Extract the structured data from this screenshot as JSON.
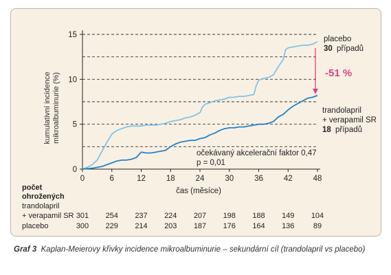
{
  "chart_data": {
    "type": "line",
    "xlabel": "čas (měsíce)",
    "ylabel": [
      "kumulativní incidence",
      "mikroalbuminurie (%)"
    ],
    "xlim": [
      0,
      48
    ],
    "ylim": [
      0,
      15
    ],
    "x_ticks": [
      0,
      6,
      12,
      18,
      24,
      30,
      36,
      42,
      48
    ],
    "y_ticks": [
      0,
      5,
      10,
      15
    ],
    "grid": "dashed horizontal lines at 2.5 % steps",
    "colors": {
      "placebo": "#7fc4e8",
      "trandolapril": "#1f84c6",
      "arrow": "#d9457f",
      "panel": "#f9f0e4"
    },
    "series": [
      {
        "name": "placebo",
        "color": "#7fc4e8",
        "x": [
          0,
          1,
          2,
          3,
          3.5,
          4,
          5,
          6,
          7,
          8,
          9,
          10,
          11,
          12,
          13,
          14,
          15,
          16,
          17,
          18,
          19,
          20,
          21,
          22,
          23,
          24,
          24.5,
          25,
          26,
          27,
          28,
          29,
          30,
          31,
          32,
          33,
          34,
          35,
          35.5,
          36,
          37,
          38,
          39,
          40,
          41,
          41.5,
          42,
          43,
          44,
          45,
          46,
          47,
          48
        ],
        "y": [
          0,
          0.2,
          0.5,
          1.0,
          1.5,
          2.0,
          3.0,
          3.9,
          4.3,
          4.5,
          4.7,
          4.8,
          4.8,
          4.8,
          4.9,
          4.9,
          4.9,
          5.0,
          5.1,
          5.3,
          5.4,
          5.5,
          5.7,
          5.8,
          6.0,
          6.3,
          6.9,
          7.2,
          7.4,
          7.6,
          7.7,
          7.8,
          8.0,
          8.0,
          8.1,
          8.1,
          8.2,
          8.3,
          9.3,
          9.9,
          10.1,
          10.2,
          10.5,
          11.4,
          12.2,
          13.3,
          13.5,
          13.6,
          13.7,
          13.8,
          13.8,
          13.9,
          14.2
        ]
      },
      {
        "name": "trandolapril + verapamil SR",
        "color": "#1f84c6",
        "x": [
          0,
          1,
          2,
          3,
          4,
          5,
          6,
          7,
          8,
          9,
          10,
          11,
          12,
          13,
          14,
          15,
          16,
          17,
          18,
          19,
          20,
          21,
          22,
          23,
          24,
          25,
          26,
          27,
          28,
          29,
          30,
          31,
          32,
          33,
          34,
          35,
          36,
          37,
          38,
          39,
          40,
          41,
          42,
          43,
          44,
          45,
          46,
          47,
          48
        ],
        "y": [
          0,
          0.05,
          0.1,
          0.2,
          0.3,
          0.5,
          0.7,
          0.9,
          1.0,
          1.0,
          1.1,
          1.3,
          1.9,
          1.8,
          1.8,
          1.9,
          2.0,
          2.1,
          2.5,
          2.8,
          3.0,
          3.1,
          3.2,
          3.2,
          3.4,
          3.5,
          3.8,
          4.0,
          4.3,
          4.5,
          4.6,
          4.6,
          4.7,
          4.7,
          4.8,
          4.9,
          5.0,
          5.0,
          5.1,
          5.3,
          5.8,
          6.1,
          6.6,
          7.0,
          7.3,
          7.6,
          7.9,
          8.0,
          8.2
        ]
      }
    ],
    "annotations": {
      "placebo_label": "placebo",
      "placebo_count": "30",
      "placebo_count_word": "případů",
      "reduction": "-51 %",
      "treat_line1": "trandolapril",
      "treat_line2": "+ verapamil SR",
      "treat_count": "18",
      "treat_count_word": "případů",
      "accel_line1": "očekávaný akcelerační faktor 0,47",
      "accel_line2": "p = 0,01"
    },
    "risk_table": {
      "title_line1": "počet",
      "title_line2": "ohrožených",
      "rows": [
        {
          "label_line1": "trandolapril",
          "label_line2": "+ verapamil SR",
          "values": [
            "301",
            "254",
            "237",
            "224",
            "207",
            "198",
            "188",
            "149",
            "104"
          ]
        },
        {
          "label_line1": "placebo",
          "label_line2": "",
          "values": [
            "300",
            "229",
            "214",
            "203",
            "187",
            "176",
            "164",
            "136",
            "89"
          ]
        }
      ]
    }
  },
  "caption": {
    "label": "Graf 3",
    "text": "Kaplan-Meierovy křivky incidence mikroalbuminurie – sekundární cíl (trandolapril vs placebo)"
  }
}
